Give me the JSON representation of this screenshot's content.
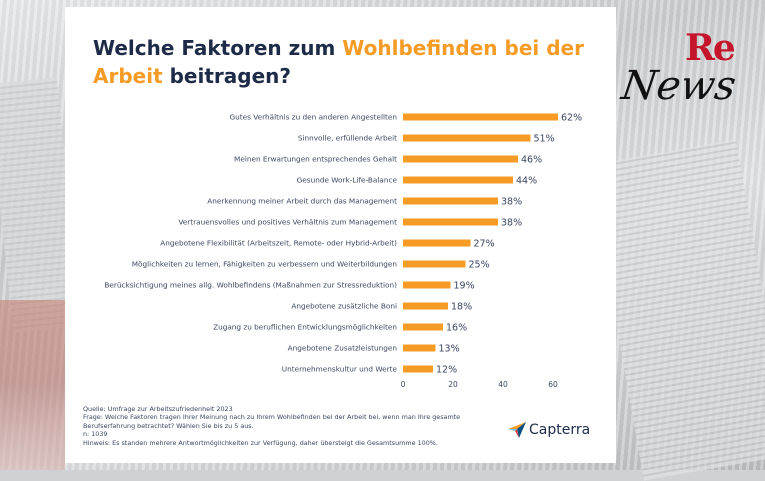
{
  "title": {
    "part1": "Welche Faktoren zum ",
    "accent1": "Wohlbefinden bei der Arbeit",
    "part2": " beitragen?"
  },
  "chart_data": {
    "type": "bar",
    "orientation": "horizontal",
    "categories": [
      "Gutes Verhältnis zu den anderen Angestellten",
      "Sinnvolle, erfüllende Arbeit",
      "Meinen Erwartungen entsprechendes Gehalt",
      "Gesunde Work-Life-Balance",
      "Anerkennung meiner Arbeit durch das Management",
      "Vertrauensvolles und positives Verhältnis zum Management",
      "Angebotene Flexibilität (Arbeitszeit, Remote- oder Hybrid-Arbeit)",
      "Möglichkeiten zu lernen, Fähigkeiten zu verbessern und Weiterbildungen",
      "Berücksichtigung meines allg. Wohlbefindens (Maßnahmen zur Stressreduktion)",
      "Angebotene zusätzliche Boni",
      "Zugang zu beruflichen Entwicklungsmöglichkeiten",
      "Angebotene Zusatzleistungen",
      "Unternehmenskultur und Werte"
    ],
    "values": [
      62,
      51,
      46,
      44,
      38,
      38,
      27,
      25,
      19,
      18,
      16,
      13,
      12
    ],
    "value_labels": [
      "62%",
      "51%",
      "46%",
      "44%",
      "38%",
      "38%",
      "27%",
      "25%",
      "19%",
      "18%",
      "16%",
      "13%",
      "12%"
    ],
    "x_ticks": [
      "0",
      "20",
      "40",
      "60"
    ],
    "xlim": [
      0,
      65
    ],
    "bar_color": "#f59b26",
    "grid": false
  },
  "notes": {
    "source": "Quelle: Umfrage zur Arbeitszufriedenheit 2023",
    "question": "Frage: Welche Faktoren tragen Ihrer Meinung nach zu Ihrem Wohlbefinden bei der Arbeit bei, wenn man Ihre gesamte Berufserfahrung betrachtet? Wählen Sie bis zu 5 aus.",
    "n": "n: 1039",
    "hint": "Hinweis: Es standen mehrere Antwortmöglichkeiten zur Verfügung, daher übersteigt die Gesamtsumme 100%."
  },
  "brand": {
    "name": "Capterra",
    "icon": "capterra-arrow-icon"
  },
  "logo": {
    "re": "Re",
    "news": "News"
  },
  "colors": {
    "title": "#1d2b48",
    "accent": "#f59b26",
    "logo_red": "#c4152b"
  }
}
